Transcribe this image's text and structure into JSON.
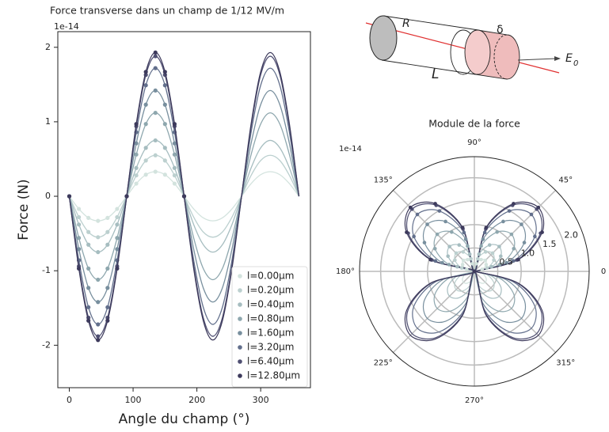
{
  "chart_data": [
    {
      "type": "line",
      "title": "Force transverse dans un champ de 1/12 MV/m",
      "multiplier": "1e-14",
      "x_label": "Angle du champ (°)",
      "y_label": "Force (N)",
      "x": [
        0,
        15,
        30,
        45,
        60,
        75,
        90,
        105,
        120,
        135,
        150,
        165,
        180,
        195,
        210,
        225,
        240,
        255,
        270,
        285,
        300,
        315,
        330,
        345,
        360
      ],
      "xlim": [
        -18,
        378
      ],
      "ylim": [
        -2.57,
        2.21
      ],
      "xticks": [
        0,
        100,
        200,
        300
      ],
      "yticks": [
        -2,
        -1,
        0,
        1,
        2
      ],
      "legend": "lower right",
      "series": [
        {
          "name": "l=0.00µm",
          "color": "#d3e3de",
          "values": [
            0,
            -0.17,
            -0.29,
            -0.33,
            -0.29,
            -0.17,
            0,
            0.17,
            0.29,
            0.33,
            0.29,
            0.17,
            0,
            -0.17,
            -0.29,
            -0.33,
            -0.29,
            -0.17,
            0,
            0.17,
            0.29,
            0.33,
            0.29,
            0.17,
            0
          ]
        },
        {
          "name": "l=0.20µm",
          "color": "#bcd0cf",
          "values": [
            0,
            -0.28,
            -0.48,
            -0.55,
            -0.48,
            -0.28,
            0,
            0.28,
            0.48,
            0.55,
            0.48,
            0.28,
            0,
            -0.28,
            -0.48,
            -0.55,
            -0.48,
            -0.28,
            0,
            0.28,
            0.48,
            0.55,
            0.48,
            0.28,
            0
          ]
        },
        {
          "name": "l=0.40µm",
          "color": "#a6bdc0",
          "values": [
            0,
            -0.38,
            -0.65,
            -0.75,
            -0.65,
            -0.38,
            0,
            0.38,
            0.65,
            0.75,
            0.65,
            0.38,
            0,
            -0.38,
            -0.65,
            -0.75,
            -0.65,
            -0.38,
            0,
            0.38,
            0.65,
            0.75,
            0.65,
            0.38,
            0
          ]
        },
        {
          "name": "l=0.80µm",
          "color": "#8ea7ae",
          "values": [
            0,
            -0.56,
            -0.97,
            -1.12,
            -0.97,
            -0.56,
            0,
            0.56,
            0.97,
            1.12,
            0.97,
            0.56,
            0,
            -0.56,
            -0.97,
            -1.12,
            -0.97,
            -0.56,
            0,
            0.56,
            0.97,
            1.12,
            0.97,
            0.56,
            0
          ]
        },
        {
          "name": "l=1.60µm",
          "color": "#788f9e",
          "values": [
            0,
            -0.71,
            -1.23,
            -1.42,
            -1.23,
            -0.71,
            0,
            0.71,
            1.23,
            1.42,
            1.23,
            0.71,
            0,
            -0.71,
            -1.23,
            -1.42,
            -1.23,
            -0.71,
            0,
            0.71,
            1.23,
            1.42,
            1.23,
            0.71,
            0
          ]
        },
        {
          "name": "l=3.20µm",
          "color": "#626f8c",
          "values": [
            0,
            -0.86,
            -1.49,
            -1.72,
            -1.49,
            -0.86,
            0,
            0.86,
            1.49,
            1.72,
            1.49,
            0.86,
            0,
            -0.86,
            -1.49,
            -1.72,
            -1.49,
            -0.86,
            0,
            0.86,
            1.49,
            1.72,
            1.49,
            0.86,
            0
          ]
        },
        {
          "name": "l=6.40µm",
          "color": "#4f4f72",
          "values": [
            0,
            -0.94,
            -1.63,
            -1.88,
            -1.63,
            -0.94,
            0,
            0.94,
            1.63,
            1.88,
            1.63,
            0.94,
            0,
            -0.94,
            -1.63,
            -1.88,
            -1.63,
            -0.94,
            0,
            0.94,
            1.63,
            1.88,
            1.63,
            0.94,
            0
          ]
        },
        {
          "name": "l=12.80µm",
          "color": "#3d3a5c",
          "values": [
            0,
            -0.97,
            -1.67,
            -1.93,
            -1.67,
            -0.97,
            0,
            0.97,
            1.67,
            1.93,
            1.67,
            0.97,
            0,
            -0.97,
            -1.67,
            -1.93,
            -1.67,
            -0.97,
            0,
            0.97,
            1.67,
            1.93,
            1.67,
            0.97,
            0
          ]
        }
      ]
    },
    {
      "type": "polar",
      "title": "Module de la force",
      "multiplier": "1e-14",
      "theta": [
        0,
        15,
        30,
        45,
        60,
        75,
        90,
        105,
        120,
        135,
        150,
        165,
        180,
        195,
        210,
        225,
        240,
        255,
        270,
        285,
        300,
        315,
        330,
        345,
        360
      ],
      "rlim": [
        0,
        2.45
      ],
      "rticks": [
        {
          "value": 0.5,
          "label": "0.5"
        },
        {
          "value": 1,
          "label": "1.0"
        },
        {
          "value": 1.5,
          "label": "1.5"
        },
        {
          "value": 2,
          "label": "2.0"
        }
      ],
      "thetaticks": [
        {
          "value": 0,
          "label": "0"
        },
        {
          "value": 45,
          "label": "45°"
        },
        {
          "value": 90,
          "label": "90°"
        },
        {
          "value": 135,
          "label": "135°"
        },
        {
          "value": 180,
          "label": "180°"
        },
        {
          "value": 225,
          "label": "225°"
        },
        {
          "value": 270,
          "label": "270°"
        },
        {
          "value": 315,
          "label": "315°"
        }
      ],
      "series": [
        {
          "name": "l=0.00µm",
          "color": "#d3e3de",
          "values": [
            0,
            0.17,
            0.29,
            0.33,
            0.29,
            0.17,
            0,
            0.17,
            0.29,
            0.33,
            0.29,
            0.17,
            0,
            0.17,
            0.29,
            0.33,
            0.29,
            0.17,
            0,
            0.17,
            0.29,
            0.33,
            0.29,
            0.17,
            0
          ]
        },
        {
          "name": "l=0.20µm",
          "color": "#bcd0cf",
          "values": [
            0,
            0.28,
            0.48,
            0.55,
            0.48,
            0.28,
            0,
            0.28,
            0.48,
            0.55,
            0.48,
            0.28,
            0,
            0.28,
            0.48,
            0.55,
            0.48,
            0.28,
            0,
            0.28,
            0.48,
            0.55,
            0.48,
            0.28,
            0
          ]
        },
        {
          "name": "l=0.40µm",
          "color": "#a6bdc0",
          "values": [
            0,
            0.38,
            0.65,
            0.75,
            0.65,
            0.38,
            0,
            0.38,
            0.65,
            0.75,
            0.65,
            0.38,
            0,
            0.38,
            0.65,
            0.75,
            0.65,
            0.38,
            0,
            0.38,
            0.65,
            0.75,
            0.65,
            0.38,
            0
          ]
        },
        {
          "name": "l=0.80µm",
          "color": "#8ea7ae",
          "values": [
            0,
            0.56,
            0.97,
            1.12,
            0.97,
            0.56,
            0,
            0.56,
            0.97,
            1.12,
            0.97,
            0.56,
            0,
            0.56,
            0.97,
            1.12,
            0.97,
            0.56,
            0,
            0.56,
            0.97,
            1.12,
            0.97,
            0.56,
            0
          ]
        },
        {
          "name": "l=1.60µm",
          "color": "#788f9e",
          "values": [
            0,
            0.71,
            1.23,
            1.42,
            1.23,
            0.71,
            0,
            0.71,
            1.23,
            1.42,
            1.23,
            0.71,
            0,
            0.71,
            1.23,
            1.42,
            1.23,
            0.71,
            0,
            0.71,
            1.23,
            1.42,
            1.23,
            0.71,
            0
          ]
        },
        {
          "name": "l=3.20µm",
          "color": "#626f8c",
          "values": [
            0,
            0.86,
            1.49,
            1.72,
            1.49,
            0.86,
            0,
            0.86,
            1.49,
            1.72,
            1.49,
            0.86,
            0,
            0.86,
            1.49,
            1.72,
            1.49,
            0.86,
            0,
            0.86,
            1.49,
            1.72,
            1.49,
            0.86,
            0
          ]
        },
        {
          "name": "l=6.40µm",
          "color": "#4f4f72",
          "values": [
            0,
            0.94,
            1.63,
            1.88,
            1.63,
            0.94,
            0,
            0.94,
            1.63,
            1.88,
            1.63,
            0.94,
            0,
            0.94,
            1.63,
            1.88,
            1.63,
            0.94,
            0,
            0.94,
            1.63,
            1.88,
            1.63,
            0.94,
            0
          ]
        },
        {
          "name": "l=12.80µm",
          "color": "#3d3a5c",
          "values": [
            0,
            0.97,
            1.67,
            1.93,
            1.67,
            0.97,
            0,
            0.97,
            1.67,
            1.93,
            1.67,
            0.97,
            0,
            0.97,
            1.67,
            1.93,
            1.67,
            0.97,
            0,
            0.97,
            1.67,
            1.93,
            1.67,
            0.97,
            0
          ]
        }
      ]
    }
  ],
  "diagram": {
    "radius_label": "R",
    "thickness_label": "δ",
    "length_label": "L",
    "field_label": "E",
    "field_subscript": "0"
  }
}
